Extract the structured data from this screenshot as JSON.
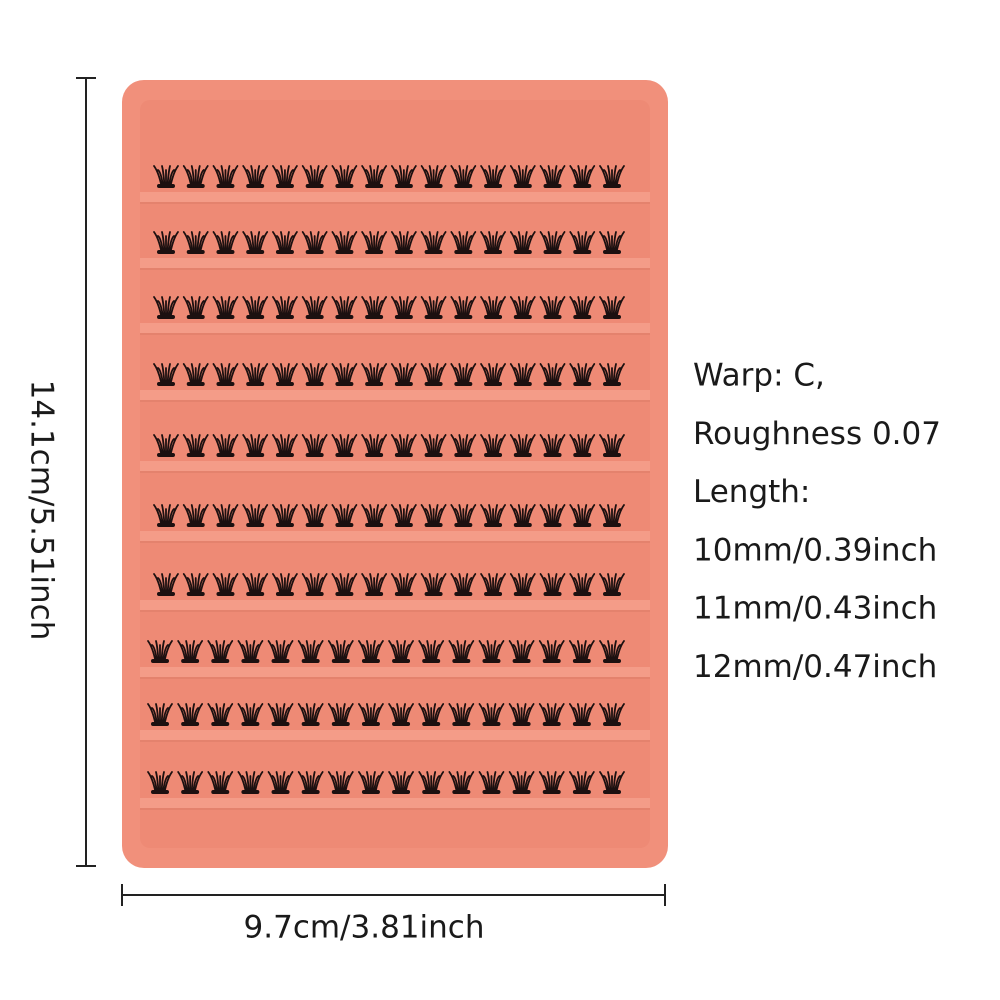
{
  "dimensions": {
    "height": "14.1cm/5.51inch",
    "width": "9.7cm/3.81inch"
  },
  "specs": [
    "Warp: C,",
    "Roughness 0.07",
    "Length:",
    "10mm/0.39inch",
    "11mm/0.43inch",
    "12mm/0.47inch"
  ]
}
